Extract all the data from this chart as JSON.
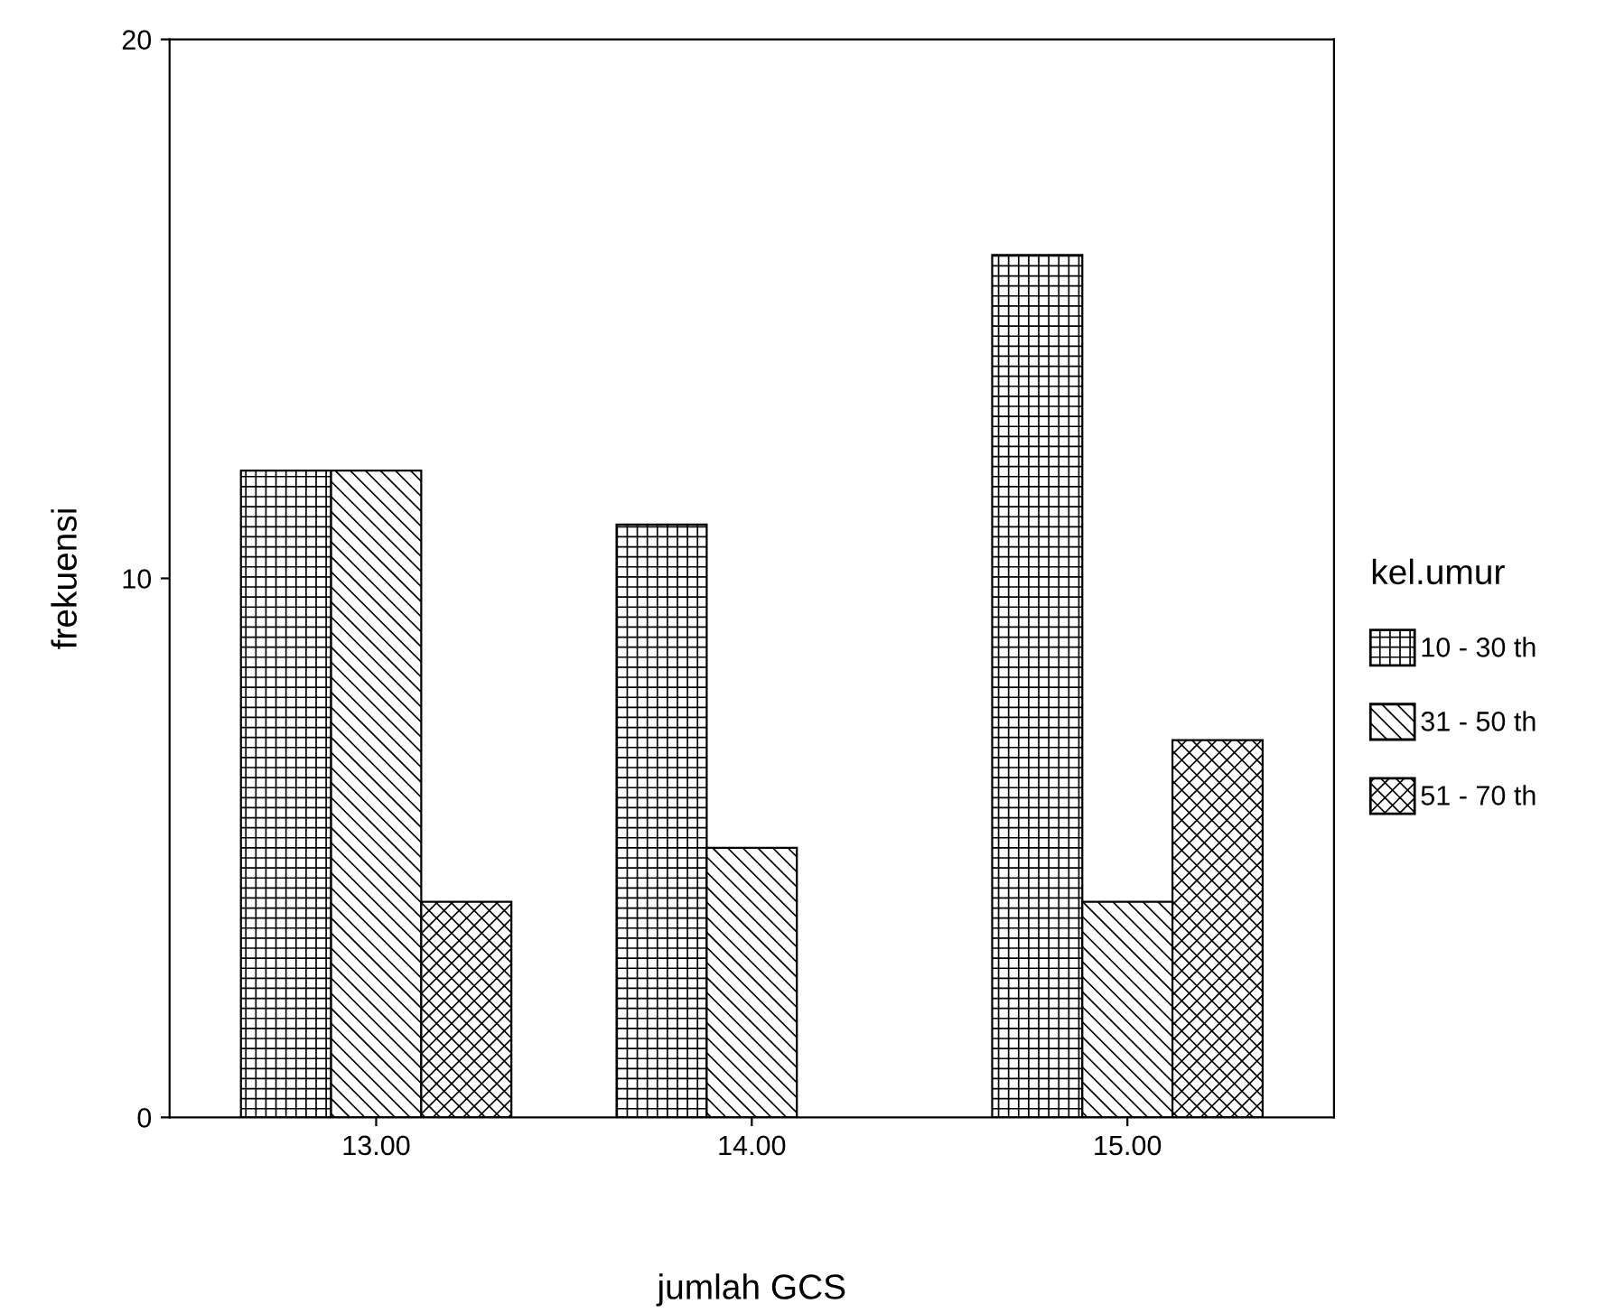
{
  "chart_data": {
    "type": "bar",
    "xlabel": "jumlah GCS",
    "ylabel": "frekuensi",
    "legend_title": "kel.umur",
    "categories": [
      "13.00",
      "14.00",
      "15.00"
    ],
    "series": [
      {
        "name": "10 - 30 th",
        "color": "#000000",
        "values": [
          12,
          11,
          16
        ]
      },
      {
        "name": "31 - 50 th",
        "color": "#000000",
        "values": [
          12,
          5,
          4
        ]
      },
      {
        "name": "51 - 70 th",
        "color": "#000000",
        "values": [
          4,
          null,
          7
        ]
      }
    ],
    "ylim": [
      0,
      20
    ],
    "yticks": [
      0,
      10,
      20
    ],
    "grid": false,
    "legend": "right"
  }
}
